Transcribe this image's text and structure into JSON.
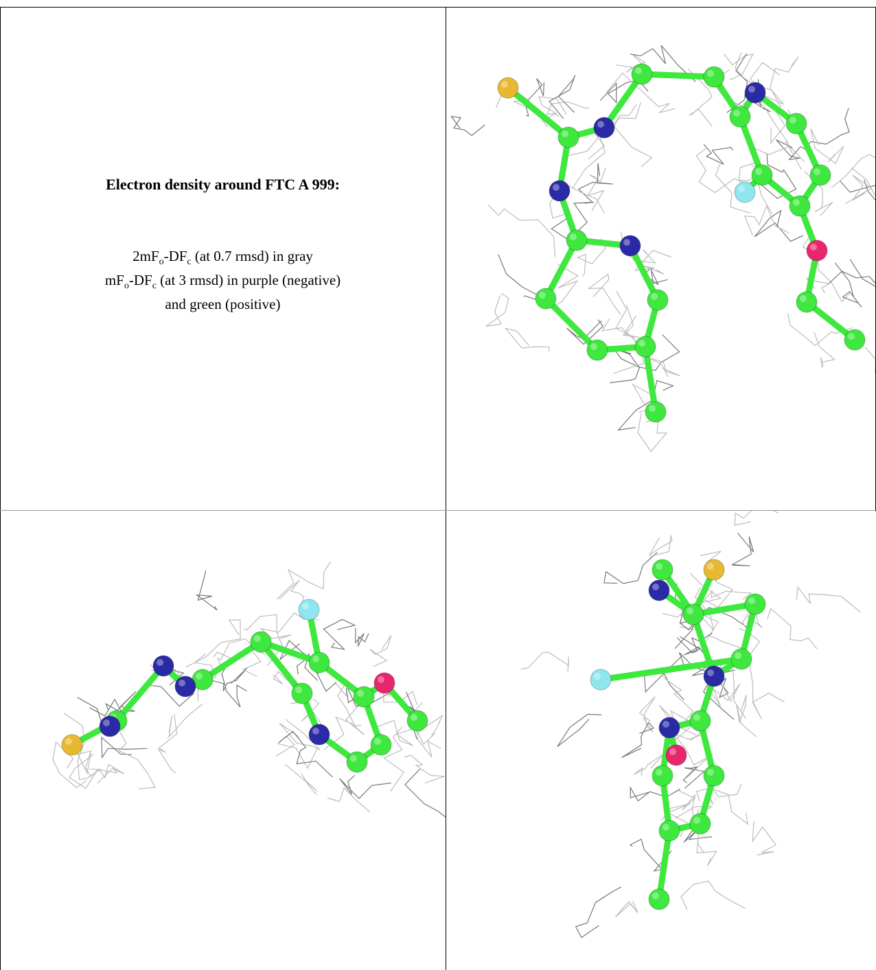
{
  "caption": {
    "title": "Electron density around FTC A 999:",
    "line1": [
      "2mF",
      "o",
      "-DF",
      "c",
      " (at 0.7 rmsd) in gray"
    ],
    "line2": [
      "mF",
      "o",
      "-DF",
      "c",
      " (at 3 rmsd) in purple (negative)"
    ],
    "line3": "and green (positive)"
  }
}
